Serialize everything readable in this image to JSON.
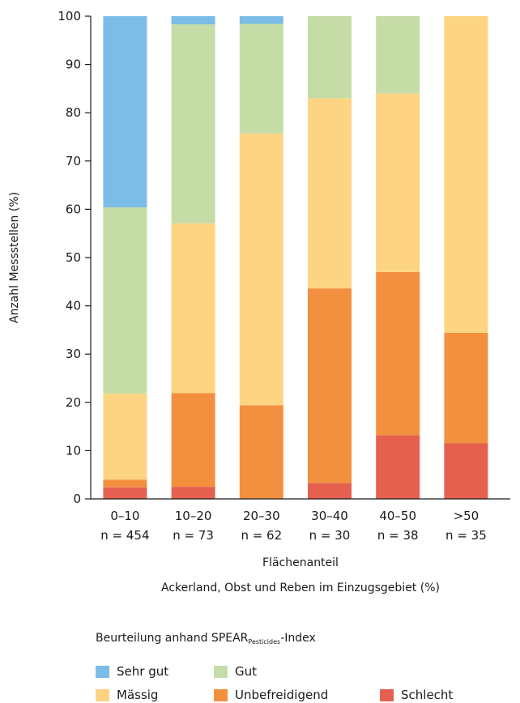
{
  "chart_data": {
    "type": "bar",
    "stacked": true,
    "orientation": "vertical",
    "categories": [
      "0–10",
      "10–20",
      "20–30",
      "30–40",
      "40–50",
      ">50"
    ],
    "category_counts": [
      "n = 454",
      "n = 73",
      "n = 62",
      "n = 30",
      "n = 38",
      "n = 35"
    ],
    "xlabel_line1": "Flächenanteil",
    "xlabel_line2": "Ackerland, Obst und Reben im Einzugsgebiet (%)",
    "ylabel": "Anzahl Messstellen (%)",
    "ylim": [
      0,
      100
    ],
    "yticks": [
      0,
      10,
      20,
      30,
      40,
      50,
      60,
      70,
      80,
      90,
      100
    ],
    "grid": false,
    "series": [
      {
        "name": "Schlecht",
        "color": "#e5604f",
        "values": [
          2.4,
          2.5,
          0,
          3.3,
          13.2,
          11.5
        ]
      },
      {
        "name": "Unbefreidigend",
        "color": "#f29040",
        "values": [
          1.6,
          19.4,
          19.4,
          40.3,
          33.8,
          22.9
        ]
      },
      {
        "name": "Mässig",
        "color": "#fcd482",
        "values": [
          17.8,
          35.2,
          56.3,
          39.4,
          37.0,
          65.6
        ]
      },
      {
        "name": "Gut",
        "color": "#c6dca6",
        "values": [
          38.6,
          41.2,
          22.7,
          17.0,
          16.0,
          0
        ]
      },
      {
        "name": "Sehr gut",
        "color": "#7bbde6",
        "values": [
          39.6,
          1.7,
          1.6,
          0,
          0,
          0
        ]
      }
    ]
  },
  "legend": {
    "title_prefix": "Beurteilung anhand SPEAR",
    "title_sub": "Pesticides",
    "title_suffix": "-Index",
    "items": [
      {
        "label": "Sehr gut",
        "color": "#7bbde6"
      },
      {
        "label": "Gut",
        "color": "#c6dca6"
      },
      {
        "label": "Mässig",
        "color": "#fcd482"
      },
      {
        "label": "Unbefreidigend",
        "color": "#f29040"
      },
      {
        "label": "Schlecht",
        "color": "#e5604f"
      }
    ]
  }
}
